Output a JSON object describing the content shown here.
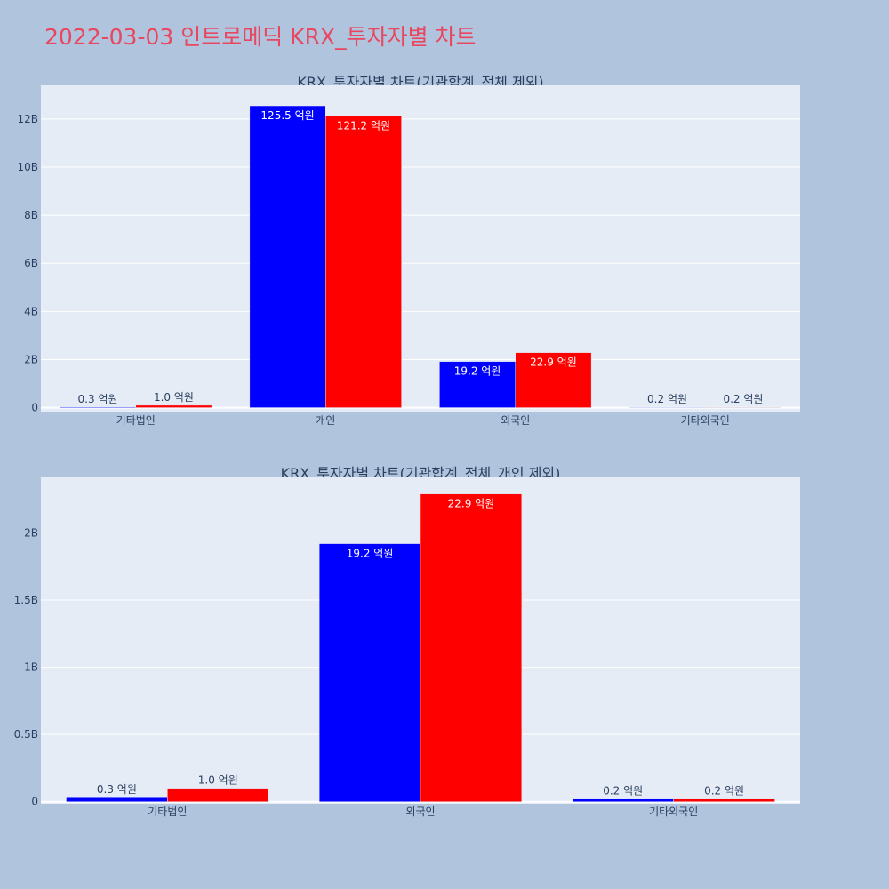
{
  "page": {
    "title": "2022-03-03 인트로메딕 KRX_투자자별 차트"
  },
  "colors": {
    "background": "#b0c4de",
    "plot_bg": "#e5ecf6",
    "series_a": "#0000ff",
    "series_b": "#ff0000",
    "title": "#e8475f"
  },
  "chart_data": [
    {
      "type": "bar",
      "title": "KRX_투자자별 차트(기관합계_전체 제외)",
      "categories": [
        "기타법인",
        "개인",
        "외국인",
        "기타외국인"
      ],
      "series": [
        {
          "color": "#0000ff",
          "values": [
            30000000,
            12550000000,
            1920000000,
            20000000
          ],
          "labels": [
            "0.3 억원",
            "125.5 억원",
            "19.2 억원",
            "0.2 억원"
          ]
        },
        {
          "color": "#ff0000",
          "values": [
            100000000,
            12120000000,
            2290000000,
            20000000
          ],
          "labels": [
            "1.0 억원",
            "121.2 억원",
            "22.9 억원",
            "0.2 억원"
          ]
        }
      ],
      "ylim": [
        -200000000,
        13400000000
      ],
      "yticks": [
        0,
        2000000000,
        4000000000,
        6000000000,
        8000000000,
        10000000000,
        12000000000
      ],
      "ytick_labels": [
        "0",
        "2B",
        "4B",
        "6B",
        "8B",
        "10B",
        "12B"
      ],
      "grid": true,
      "legend": "none"
    },
    {
      "type": "bar",
      "title": "KRX_투자자별 차트(기관합계_전체_개인 제외)",
      "categories": [
        "기타법인",
        "외국인",
        "기타외국인"
      ],
      "series": [
        {
          "color": "#0000ff",
          "values": [
            30000000,
            1920000000,
            20000000
          ],
          "labels": [
            "0.3 억원",
            "19.2 억원",
            "0.2 억원"
          ]
        },
        {
          "color": "#ff0000",
          "values": [
            100000000,
            2290000000,
            20000000
          ],
          "labels": [
            "1.0 억원",
            "22.9 억원",
            "0.2 억원"
          ]
        }
      ],
      "ylim": [
        -15000000,
        2420000000
      ],
      "yticks": [
        0,
        500000000,
        1000000000,
        1500000000,
        2000000000
      ],
      "ytick_labels": [
        "0",
        "0.5B",
        "1B",
        "1.5B",
        "2B"
      ],
      "grid": true,
      "legend": "none"
    }
  ]
}
